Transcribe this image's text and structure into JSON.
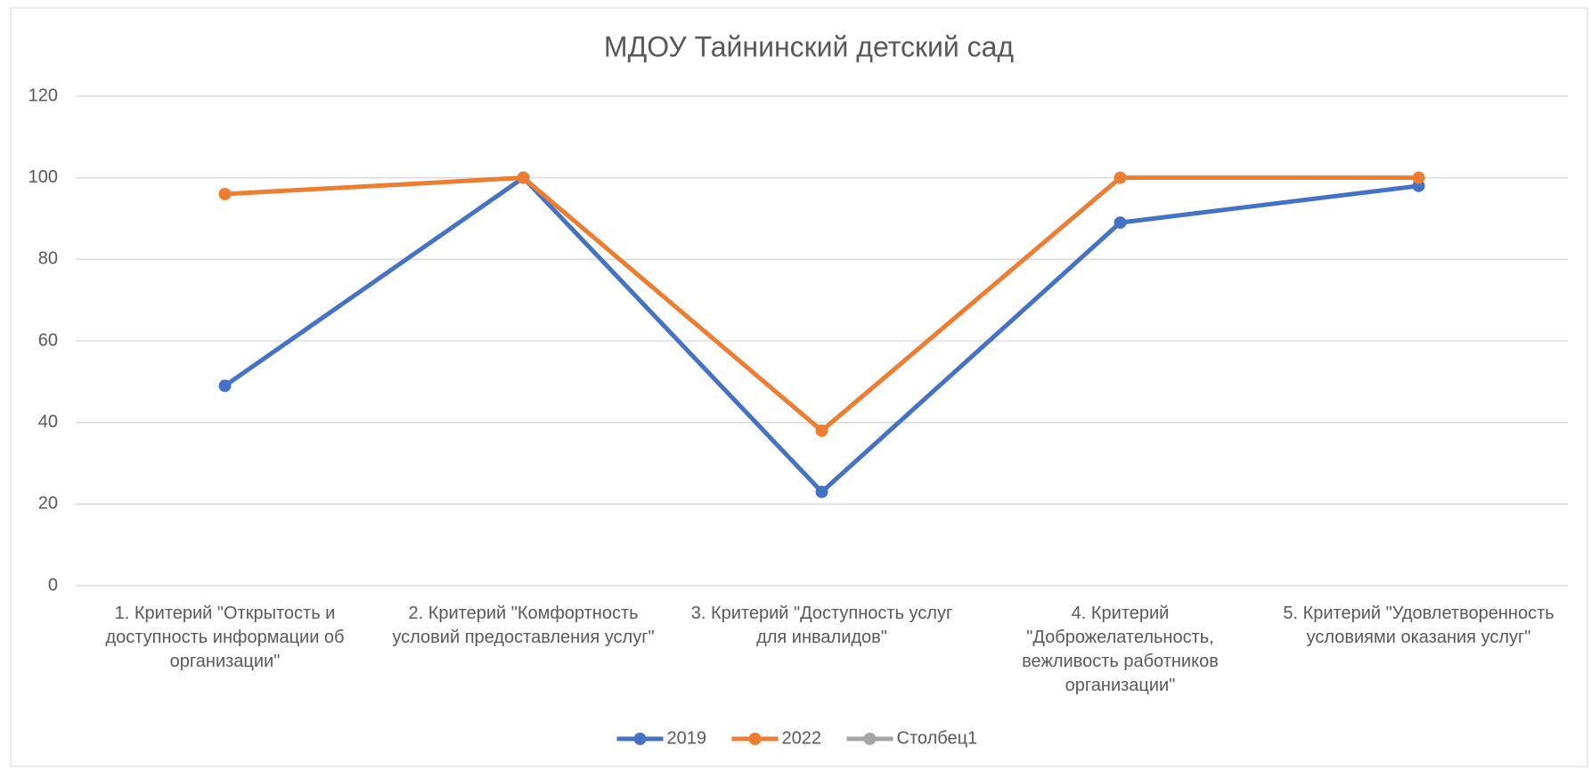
{
  "chart_data": {
    "type": "line",
    "title": "МДОУ Тайнинский детский сад",
    "categories": [
      "1. Критерий \"Открытость и доступность информации об организации\"",
      "2. Критерий \"Комфортность условий предоставления услуг\"",
      "3. Критерий \"Доступность услуг для инвалидов\"",
      "4. Критерий \"Доброжелательность, вежливость работников организации\"",
      "5. Критерий \"Удовлетворенность условиями оказания услуг\""
    ],
    "series": [
      {
        "name": "2019",
        "color": "#4472c4",
        "values": [
          49,
          100,
          23,
          89,
          98
        ]
      },
      {
        "name": "2022",
        "color": "#ed7d31",
        "values": [
          96,
          100,
          38,
          100,
          100
        ]
      },
      {
        "name": "Столбец1",
        "color": "#a5a5a5",
        "values": [
          null,
          null,
          null,
          null,
          null
        ]
      }
    ],
    "ylim": [
      0,
      120
    ],
    "yticks": [
      0,
      20,
      40,
      60,
      80,
      100,
      120
    ],
    "grid": true,
    "legend": "bottom"
  }
}
